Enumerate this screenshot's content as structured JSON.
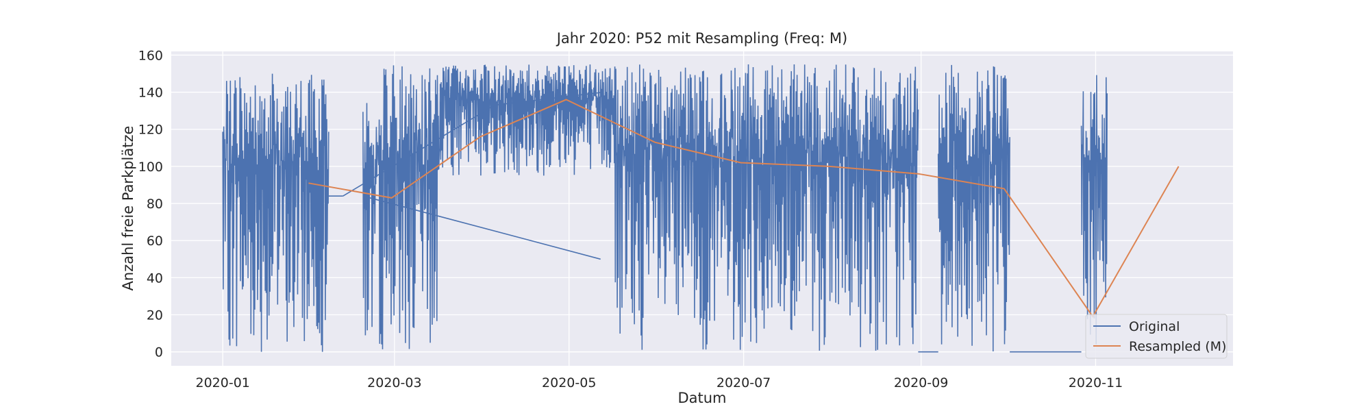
{
  "chart_data": {
    "type": "line",
    "title": "Jahr 2020: P52 mit Resampling (Freq: M)",
    "xlabel": "Datum",
    "ylabel": "Anzahl freie Parkplätze",
    "xlim": [
      "2019-12-14",
      "2020-12-19"
    ],
    "ylim": [
      -7.5,
      162
    ],
    "x_ticks": [
      "2020-01-01",
      "2020-03-01",
      "2020-05-01",
      "2020-07-01",
      "2020-09-01",
      "2020-11-01"
    ],
    "x_tick_labels": [
      "2020-01",
      "2020-03",
      "2020-05",
      "2020-07",
      "2020-09",
      "2020-11"
    ],
    "y_ticks": [
      0,
      20,
      40,
      60,
      80,
      100,
      120,
      140,
      160
    ],
    "y_tick_labels": [
      "0",
      "20",
      "40",
      "60",
      "80",
      "100",
      "120",
      "140",
      "160"
    ],
    "grid": true,
    "background": "#eaeaf2",
    "legend_position": "lower right",
    "series": [
      {
        "name": "Original",
        "color": "#4c72b0",
        "note_dense": "high-frequency oscillation approximated by segments",
        "segments": [
          {
            "start": "2020-01-01",
            "end": "2020-02-07",
            "min": 0,
            "max": 150
          },
          {
            "start": "2020-02-07",
            "end": "2020-02-12",
            "min": 84,
            "max": 84
          },
          {
            "start": "2020-02-19",
            "end": "2020-02-24",
            "min": 0,
            "max": 137
          },
          {
            "start": "2020-02-24",
            "end": "2020-03-17",
            "min": 0,
            "max": 155
          },
          {
            "start": "2020-03-17",
            "end": "2020-05-17",
            "min": 95,
            "max": 155
          },
          {
            "start": "2020-05-17",
            "end": "2020-08-31",
            "min": 0,
            "max": 155
          },
          {
            "start": "2020-08-31",
            "end": "2020-09-07",
            "min": 0,
            "max": 0
          },
          {
            "start": "2020-09-07",
            "end": "2020-10-02",
            "min": 0,
            "max": 155
          },
          {
            "start": "2020-10-02",
            "end": "2020-10-27",
            "min": 0,
            "max": 0
          },
          {
            "start": "2020-10-27",
            "end": "2020-11-05",
            "min": 0,
            "max": 150
          }
        ],
        "connector_lines": [
          [
            [
              "2020-02-12",
              84
            ],
            [
              "2020-04-05",
              133
            ],
            [
              "2020-05-13",
              140
            ]
          ],
          [
            [
              "2020-02-19",
              84
            ],
            [
              "2020-05-12",
              50
            ]
          ]
        ]
      },
      {
        "name": "Resampled (M)",
        "color": "#dd8452",
        "points": [
          [
            "2020-01-31",
            91
          ],
          [
            "2020-02-29",
            83
          ],
          [
            "2020-03-31",
            116
          ],
          [
            "2020-04-30",
            136
          ],
          [
            "2020-05-31",
            113
          ],
          [
            "2020-06-30",
            102
          ],
          [
            "2020-07-31",
            100
          ],
          [
            "2020-08-31",
            96
          ],
          [
            "2020-09-30",
            88
          ],
          [
            "2020-10-31",
            19
          ],
          [
            "2020-11-30",
            100
          ]
        ]
      }
    ]
  }
}
